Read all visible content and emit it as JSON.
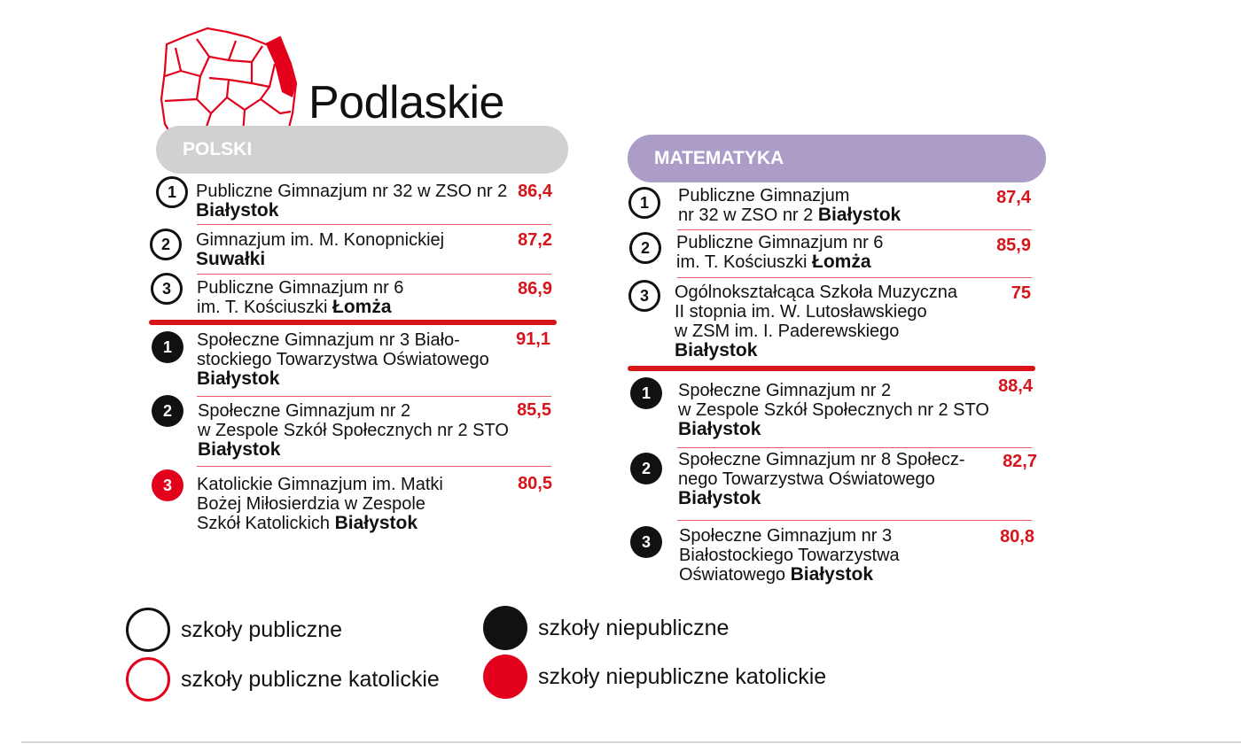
{
  "region": {
    "title": "Podlaskie",
    "map_icon": "poland-map-icon",
    "highlight_color": "#e2001a"
  },
  "polski": {
    "header": "POLSKI",
    "color": "#d1d1d1",
    "public": [
      {
        "rank": "1",
        "name": "Publiczne Gimnazjum nr 32 w ZSO nr 2",
        "city": "Białystok",
        "score": "86,4"
      },
      {
        "rank": "2",
        "name": "Gimnazjum im. M. Konopnickiej",
        "city": "Suwałki",
        "score": "87,2"
      },
      {
        "rank": "3",
        "name": "Publiczne Gimnazjum nr 6\nim. T. Kościuszki",
        "city": "Łomża",
        "score": "86,9"
      }
    ],
    "private": [
      {
        "rank": "1",
        "name": "Społeczne Gimnazjum nr 3 Biało-\nstockiego Towarzystwa Oświatowego",
        "city": "Białystok",
        "score": "91,1"
      },
      {
        "rank": "2",
        "name": "Społeczne Gimnazjum nr 2\nw Zespole Szkół Społecznych nr 2 STO",
        "city": "Białystok",
        "score": "85,5"
      },
      {
        "rank": "3",
        "name": "Katolickie Gimnazjum im. Matki\nBożej Miłosierdzia w Zespole\nSzkół Katolickich",
        "city": "Białystok",
        "score": "80,5"
      }
    ]
  },
  "matematyka": {
    "header": "MATEMATYKA",
    "color": "#ab9cc8",
    "public": [
      {
        "rank": "1",
        "name": "Publiczne Gimnazjum\nnr 32 w ZSO nr 2",
        "city": "Białystok",
        "score": "87,4"
      },
      {
        "rank": "2",
        "name": "Publiczne Gimnazjum nr 6\nim. T. Kościuszki",
        "city": "Łomża",
        "score": "85,9"
      },
      {
        "rank": "3",
        "name": "Ogólnokształcąca Szkoła Muzyczna\nII stopnia im. W. Lutosławskiego\nw ZSM im. I. Paderewskiego",
        "city": "Białystok",
        "score": "75"
      }
    ],
    "private": [
      {
        "rank": "1",
        "name": "Społeczne Gimnazjum nr 2\nw Zespole Szkół Społecznych nr 2 STO",
        "city": "Białystok",
        "score": "88,4"
      },
      {
        "rank": "2",
        "name": "Społeczne Gimnazjum nr 8 Społecz-\nnego Towarzystwa Oświatowego",
        "city": "Białystok",
        "score": "82,7"
      },
      {
        "rank": "3",
        "name": "Społeczne Gimnazjum nr 3\nBiałostockiego Towarzystwa\nOświatowego",
        "city": "Białystok",
        "score": "80,8"
      }
    ]
  },
  "legend": {
    "public": "szkoły publiczne",
    "public_catholic": "szkoły publiczne katolickie",
    "private": "szkoły niepubliczne",
    "private_catholic": "szkoły niepubliczne katolickie"
  },
  "colors": {
    "accent_red": "#d7141a",
    "black": "#111111"
  }
}
